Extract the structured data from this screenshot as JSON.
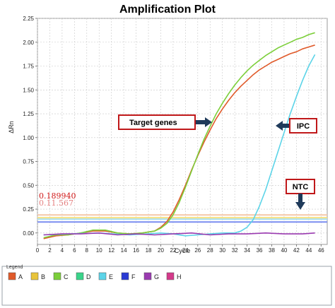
{
  "chart_data": {
    "type": "line",
    "title": "Amplification Plot",
    "xlabel": "Cycle",
    "ylabel": "ΔRn",
    "xlim": [
      0,
      47
    ],
    "ylim": [
      -0.12,
      2.25
    ],
    "x_ticks": [
      0,
      2,
      4,
      6,
      8,
      10,
      12,
      14,
      16,
      18,
      20,
      22,
      24,
      26,
      28,
      30,
      32,
      34,
      36,
      38,
      40,
      42,
      44,
      46
    ],
    "x_tick_labels": [
      "0",
      "2",
      "4",
      "6",
      "8",
      "10",
      "12",
      "14",
      "16",
      "18",
      "20",
      "22",
      "24",
      "26",
      "28",
      "30",
      "32",
      "34",
      "36",
      "38",
      "40",
      "42",
      "44",
      "46"
    ],
    "y_ticks": [
      0.0,
      0.25,
      0.5,
      0.75,
      1.0,
      1.25,
      1.5,
      1.75,
      2.0,
      2.25
    ],
    "y_tick_labels": [
      "0.00",
      "0.25",
      "0.50",
      "0.75",
      "1.00",
      "1.25",
      "1.50",
      "1.75",
      "2.00",
      "2.25"
    ],
    "grid": true,
    "threshold_lines": [
      {
        "value": 0.189,
        "color": "#f5c8a8"
      },
      {
        "value": 0.16,
        "color": "#f7e07a"
      },
      {
        "value": 0.145,
        "color": "#a8e0f0"
      },
      {
        "value": 0.115,
        "color": "#7a8df0"
      }
    ],
    "threshold_labels": [
      "0.189940",
      "0.11.567"
    ],
    "series": [
      {
        "name": "A",
        "color": "#e05a2a",
        "x": [
          1,
          3,
          5,
          7,
          9,
          11,
          13,
          15,
          17,
          19,
          20,
          21,
          22,
          23,
          24,
          25,
          26,
          27,
          28,
          29,
          30,
          31,
          32,
          33,
          34,
          35,
          36,
          37,
          38,
          39,
          40,
          41,
          42,
          43,
          44,
          45
        ],
        "y": [
          -0.06,
          -0.03,
          -0.02,
          0.0,
          0.02,
          0.02,
          0.0,
          -0.01,
          0.0,
          0.02,
          0.06,
          0.12,
          0.22,
          0.35,
          0.5,
          0.66,
          0.81,
          0.95,
          1.08,
          1.2,
          1.3,
          1.39,
          1.47,
          1.54,
          1.6,
          1.66,
          1.71,
          1.75,
          1.79,
          1.82,
          1.85,
          1.88,
          1.9,
          1.93,
          1.95,
          1.97
        ]
      },
      {
        "name": "C",
        "color": "#7ccf3a",
        "x": [
          1,
          3,
          5,
          7,
          9,
          11,
          13,
          15,
          17,
          19,
          20,
          21,
          22,
          23,
          24,
          25,
          26,
          27,
          28,
          29,
          30,
          31,
          32,
          33,
          34,
          35,
          36,
          37,
          38,
          39,
          40,
          41,
          42,
          43,
          44,
          45
        ],
        "y": [
          -0.05,
          -0.02,
          -0.02,
          0.0,
          0.03,
          0.03,
          0.0,
          -0.01,
          0.0,
          0.02,
          0.05,
          0.1,
          0.19,
          0.32,
          0.48,
          0.65,
          0.82,
          0.98,
          1.12,
          1.25,
          1.36,
          1.46,
          1.55,
          1.63,
          1.7,
          1.76,
          1.81,
          1.86,
          1.9,
          1.94,
          1.97,
          2.0,
          2.03,
          2.05,
          2.08,
          2.1
        ]
      },
      {
        "name": "E",
        "color": "#5cd4e8",
        "x": [
          1,
          5,
          10,
          15,
          20,
          22,
          24,
          26,
          28,
          30,
          32,
          33,
          34,
          35,
          36,
          37,
          38,
          39,
          40,
          41,
          42,
          43,
          44,
          45
        ],
        "y": [
          -0.02,
          -0.01,
          0.0,
          -0.02,
          0.0,
          -0.01,
          -0.03,
          -0.02,
          -0.01,
          0.0,
          0.0,
          0.02,
          0.06,
          0.14,
          0.28,
          0.45,
          0.65,
          0.85,
          1.05,
          1.25,
          1.43,
          1.6,
          1.75,
          1.87
        ]
      },
      {
        "name": "G",
        "color": "#9a3ab0",
        "x": [
          1,
          4,
          7,
          10,
          13,
          16,
          19,
          22,
          25,
          28,
          31,
          34,
          37,
          40,
          43,
          45
        ],
        "y": [
          -0.02,
          -0.01,
          -0.01,
          0.0,
          -0.02,
          -0.01,
          -0.02,
          -0.01,
          0.0,
          -0.02,
          -0.01,
          -0.01,
          0.0,
          -0.01,
          -0.01,
          0.0
        ]
      }
    ]
  },
  "annotations": {
    "target_genes": "Target genes",
    "ipc": "IPC",
    "ntc": "NTC"
  },
  "legend": {
    "title": "Legend",
    "items": [
      {
        "label": "A",
        "color": "#e05a2a"
      },
      {
        "label": "B",
        "color": "#e8c43a"
      },
      {
        "label": "C",
        "color": "#7ccf3a"
      },
      {
        "label": "D",
        "color": "#3ad48a"
      },
      {
        "label": "E",
        "color": "#5cd4e8"
      },
      {
        "label": "F",
        "color": "#2a3ad4"
      },
      {
        "label": "G",
        "color": "#9a3ab0"
      },
      {
        "label": "H",
        "color": "#d43a8a"
      }
    ]
  },
  "colors": {
    "annotation_border": "#c0181a",
    "arrow": "#1f3a5a",
    "grid": "#c8c8c8"
  }
}
